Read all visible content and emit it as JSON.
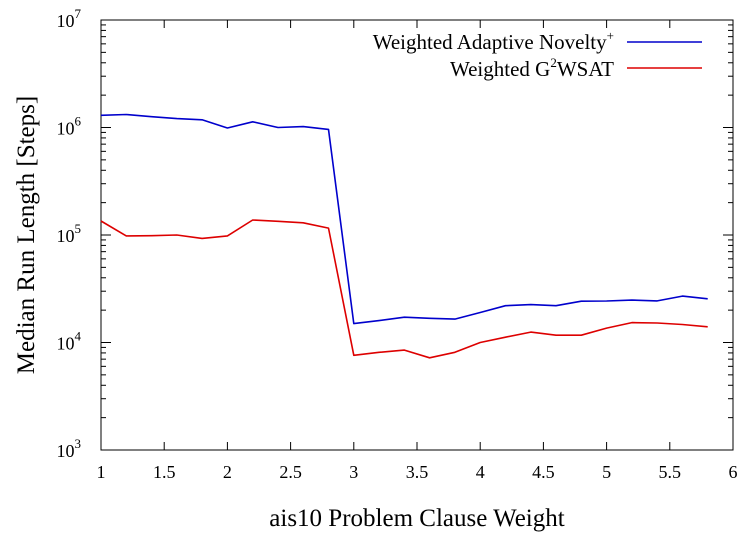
{
  "chart_data": {
    "type": "line",
    "xlabel": "ais10 Problem Clause Weight",
    "ylabel": "Median Run Length [Steps]",
    "xlim": [
      1,
      6
    ],
    "ylim": [
      1000,
      10000000
    ],
    "yscale": "log",
    "grid": false,
    "legend_position": "top-right",
    "x_ticks": [
      "1",
      "1.5",
      "2",
      "2.5",
      "3",
      "3.5",
      "4",
      "4.5",
      "5",
      "5.5",
      "6"
    ],
    "y_ticks": [
      {
        "base": "10",
        "exp": "3"
      },
      {
        "base": "10",
        "exp": "4"
      },
      {
        "base": "10",
        "exp": "5"
      },
      {
        "base": "10",
        "exp": "6"
      },
      {
        "base": "10",
        "exp": "7"
      }
    ],
    "x": [
      1.0,
      1.2,
      1.4,
      1.6,
      1.8,
      2.0,
      2.2,
      2.4,
      2.6,
      2.8,
      3.0,
      3.2,
      3.4,
      3.6,
      3.8,
      4.0,
      4.2,
      4.4,
      4.6,
      4.8,
      5.0,
      5.2,
      5.4,
      5.6,
      5.8
    ],
    "series": [
      {
        "name": "Weighted Adaptive Novelty",
        "name_sup": "+",
        "color": "#0000cc",
        "values": [
          1300000,
          1320000,
          1260000,
          1210000,
          1180000,
          990000,
          1130000,
          1000000,
          1020000,
          960000,
          15000,
          16000,
          17200,
          16800,
          16500,
          19000,
          22000,
          22500,
          22000,
          24200,
          24300,
          24800,
          24400,
          27000,
          25500
        ]
      },
      {
        "name": "Weighted G",
        "name_sup": "2",
        "name_suffix": "WSAT",
        "color": "#dd0000",
        "values": [
          135000,
          98000,
          98500,
          100000,
          93000,
          98000,
          138000,
          134000,
          130000,
          116000,
          7600,
          8100,
          8500,
          7200,
          8100,
          10000,
          11200,
          12500,
          11700,
          11700,
          13600,
          15300,
          15200,
          14700,
          14000
        ]
      }
    ]
  }
}
